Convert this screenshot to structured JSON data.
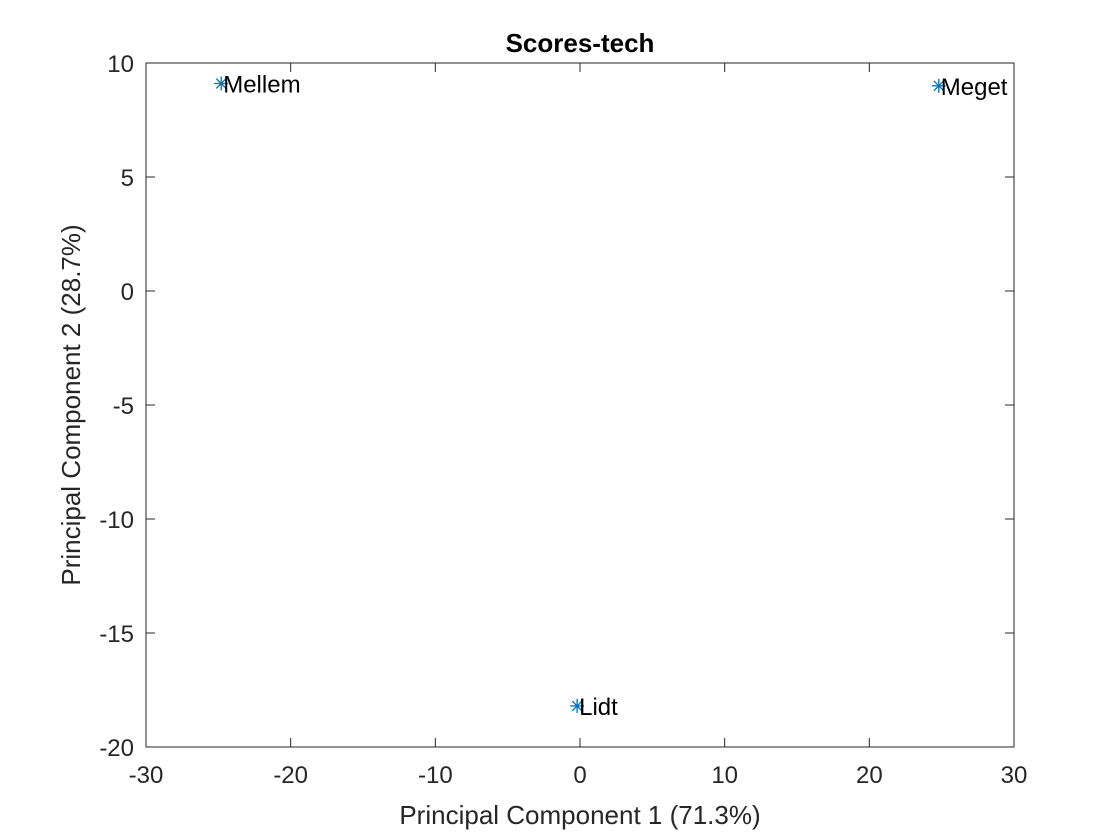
{
  "chart_data": {
    "type": "scatter",
    "title": "Scores-tech",
    "xlabel": "Principal Component 1 (71.3%)",
    "ylabel": "Principal Component 2 (28.7%)",
    "xlim": [
      -30,
      30
    ],
    "ylim": [
      -20,
      10
    ],
    "xticks": [
      -30,
      -20,
      -10,
      0,
      10,
      20,
      30
    ],
    "yticks": [
      -20,
      -15,
      -10,
      -5,
      0,
      5,
      10
    ],
    "grid": false,
    "marker": "asterisk",
    "marker_color": "#0072BD",
    "points": [
      {
        "x": -24.8,
        "y": 9.1,
        "label": "Mellem"
      },
      {
        "x": 24.8,
        "y": 9.0,
        "label": "Meget"
      },
      {
        "x": -0.2,
        "y": -18.2,
        "label": "Lidt"
      }
    ]
  }
}
